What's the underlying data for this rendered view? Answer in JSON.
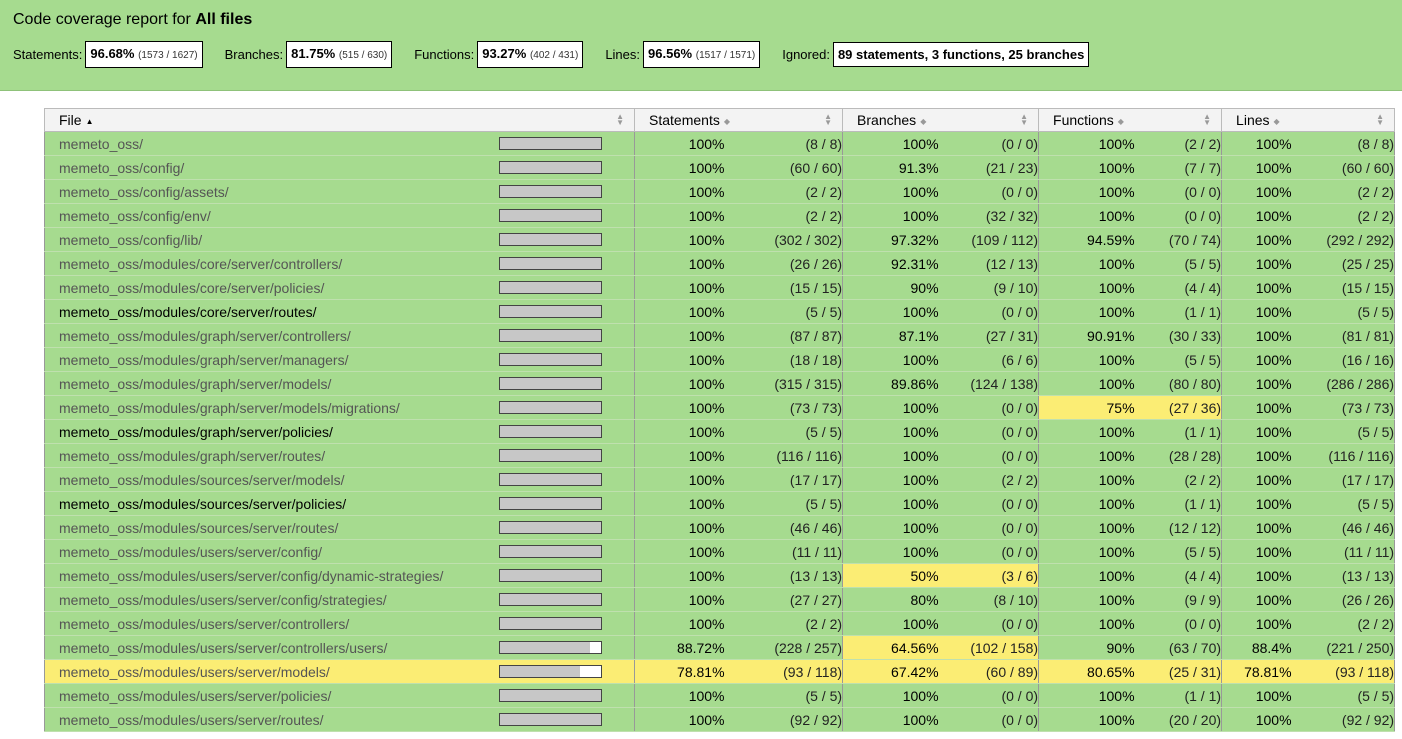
{
  "header": {
    "title_prefix": "Code coverage report for ",
    "title_bold": "All files",
    "summary": [
      {
        "label": "Statements:",
        "pct": "96.68%",
        "frac": "(1573 / 1627)"
      },
      {
        "label": "Branches:",
        "pct": "81.75%",
        "frac": "(515 / 630)"
      },
      {
        "label": "Functions:",
        "pct": "93.27%",
        "frac": "(402 / 431)"
      },
      {
        "label": "Lines:",
        "pct": "96.56%",
        "frac": "(1517 / 1571)"
      }
    ],
    "ignored_label": "Ignored:",
    "ignored_value": "89 statements, 3 functions, 25 branches"
  },
  "columns": {
    "file": "File",
    "statements": "Statements",
    "branches": "Branches",
    "functions": "Functions",
    "lines": "Lines"
  },
  "rows": [
    {
      "file": "memeto_oss/",
      "fill": 1.0,
      "s": "100%",
      "sf": "(8 / 8)",
      "b": "100%",
      "bf": "(0 / 0)",
      "f": "100%",
      "ff": "(2 / 2)",
      "l": "100%",
      "lf": "(8 / 8)"
    },
    {
      "file": "memeto_oss/config/",
      "fill": 1.0,
      "s": "100%",
      "sf": "(60 / 60)",
      "b": "91.3%",
      "bf": "(21 / 23)",
      "f": "100%",
      "ff": "(7 / 7)",
      "l": "100%",
      "lf": "(60 / 60)"
    },
    {
      "file": "memeto_oss/config/assets/",
      "fill": 1.0,
      "s": "100%",
      "sf": "(2 / 2)",
      "b": "100%",
      "bf": "(0 / 0)",
      "f": "100%",
      "ff": "(0 / 0)",
      "l": "100%",
      "lf": "(2 / 2)"
    },
    {
      "file": "memeto_oss/config/env/",
      "fill": 1.0,
      "s": "100%",
      "sf": "(2 / 2)",
      "b": "100%",
      "bf": "(32 / 32)",
      "f": "100%",
      "ff": "(0 / 0)",
      "l": "100%",
      "lf": "(2 / 2)"
    },
    {
      "file": "memeto_oss/config/lib/",
      "fill": 1.0,
      "s": "100%",
      "sf": "(302 / 302)",
      "b": "97.32%",
      "bf": "(109 / 112)",
      "f": "94.59%",
      "ff": "(70 / 74)",
      "l": "100%",
      "lf": "(292 / 292)"
    },
    {
      "file": "memeto_oss/modules/core/server/controllers/",
      "fill": 1.0,
      "s": "100%",
      "sf": "(26 / 26)",
      "b": "92.31%",
      "bf": "(12 / 13)",
      "f": "100%",
      "ff": "(5 / 5)",
      "l": "100%",
      "lf": "(25 / 25)"
    },
    {
      "file": "memeto_oss/modules/core/server/policies/",
      "fill": 1.0,
      "s": "100%",
      "sf": "(15 / 15)",
      "b": "90%",
      "bf": "(9 / 10)",
      "f": "100%",
      "ff": "(4 / 4)",
      "l": "100%",
      "lf": "(15 / 15)"
    },
    {
      "file": "memeto_oss/modules/core/server/routes/",
      "fill": 1.0,
      "dark": true,
      "s": "100%",
      "sf": "(5 / 5)",
      "b": "100%",
      "bf": "(0 / 0)",
      "f": "100%",
      "ff": "(1 / 1)",
      "l": "100%",
      "lf": "(5 / 5)"
    },
    {
      "file": "memeto_oss/modules/graph/server/controllers/",
      "fill": 1.0,
      "s": "100%",
      "sf": "(87 / 87)",
      "b": "87.1%",
      "bf": "(27 / 31)",
      "f": "90.91%",
      "ff": "(30 / 33)",
      "l": "100%",
      "lf": "(81 / 81)"
    },
    {
      "file": "memeto_oss/modules/graph/server/managers/",
      "fill": 1.0,
      "s": "100%",
      "sf": "(18 / 18)",
      "b": "100%",
      "bf": "(6 / 6)",
      "f": "100%",
      "ff": "(5 / 5)",
      "l": "100%",
      "lf": "(16 / 16)"
    },
    {
      "file": "memeto_oss/modules/graph/server/models/",
      "fill": 1.0,
      "s": "100%",
      "sf": "(315 / 315)",
      "b": "89.86%",
      "bf": "(124 / 138)",
      "f": "100%",
      "ff": "(80 / 80)",
      "l": "100%",
      "lf": "(286 / 286)"
    },
    {
      "file": "memeto_oss/modules/graph/server/models/migrations/",
      "fill": 1.0,
      "s": "100%",
      "sf": "(73 / 73)",
      "b": "100%",
      "bf": "(0 / 0)",
      "f": "75%",
      "ff": "(27 / 36)",
      "fyel": true,
      "l": "100%",
      "lf": "(73 / 73)"
    },
    {
      "file": "memeto_oss/modules/graph/server/policies/",
      "fill": 1.0,
      "dark": true,
      "s": "100%",
      "sf": "(5 / 5)",
      "b": "100%",
      "bf": "(0 / 0)",
      "f": "100%",
      "ff": "(1 / 1)",
      "l": "100%",
      "lf": "(5 / 5)"
    },
    {
      "file": "memeto_oss/modules/graph/server/routes/",
      "fill": 1.0,
      "s": "100%",
      "sf": "(116 / 116)",
      "b": "100%",
      "bf": "(0 / 0)",
      "f": "100%",
      "ff": "(28 / 28)",
      "l": "100%",
      "lf": "(116 / 116)"
    },
    {
      "file": "memeto_oss/modules/sources/server/models/",
      "fill": 1.0,
      "s": "100%",
      "sf": "(17 / 17)",
      "b": "100%",
      "bf": "(2 / 2)",
      "f": "100%",
      "ff": "(2 / 2)",
      "l": "100%",
      "lf": "(17 / 17)"
    },
    {
      "file": "memeto_oss/modules/sources/server/policies/",
      "fill": 1.0,
      "dark": true,
      "s": "100%",
      "sf": "(5 / 5)",
      "b": "100%",
      "bf": "(0 / 0)",
      "f": "100%",
      "ff": "(1 / 1)",
      "l": "100%",
      "lf": "(5 / 5)"
    },
    {
      "file": "memeto_oss/modules/sources/server/routes/",
      "fill": 1.0,
      "s": "100%",
      "sf": "(46 / 46)",
      "b": "100%",
      "bf": "(0 / 0)",
      "f": "100%",
      "ff": "(12 / 12)",
      "l": "100%",
      "lf": "(46 / 46)"
    },
    {
      "file": "memeto_oss/modules/users/server/config/",
      "fill": 1.0,
      "s": "100%",
      "sf": "(11 / 11)",
      "b": "100%",
      "bf": "(0 / 0)",
      "f": "100%",
      "ff": "(5 / 5)",
      "l": "100%",
      "lf": "(11 / 11)"
    },
    {
      "file": "memeto_oss/modules/users/server/config/dynamic-strategies/",
      "fill": 1.0,
      "s": "100%",
      "sf": "(13 / 13)",
      "b": "50%",
      "bf": "(3 / 6)",
      "byel": true,
      "f": "100%",
      "ff": "(4 / 4)",
      "l": "100%",
      "lf": "(13 / 13)"
    },
    {
      "file": "memeto_oss/modules/users/server/config/strategies/",
      "fill": 1.0,
      "s": "100%",
      "sf": "(27 / 27)",
      "b": "80%",
      "bf": "(8 / 10)",
      "f": "100%",
      "ff": "(9 / 9)",
      "l": "100%",
      "lf": "(26 / 26)"
    },
    {
      "file": "memeto_oss/modules/users/server/controllers/",
      "fill": 1.0,
      "s": "100%",
      "sf": "(2 / 2)",
      "b": "100%",
      "bf": "(0 / 0)",
      "f": "100%",
      "ff": "(0 / 0)",
      "l": "100%",
      "lf": "(2 / 2)"
    },
    {
      "file": "memeto_oss/modules/users/server/controllers/users/",
      "fill": 0.8872,
      "s": "88.72%",
      "sf": "(228 / 257)",
      "b": "64.56%",
      "bf": "(102 / 158)",
      "byel": true,
      "f": "90%",
      "ff": "(63 / 70)",
      "l": "88.4%",
      "lf": "(221 / 250)"
    },
    {
      "file": "memeto_oss/modules/users/server/models/",
      "fill": 0.7881,
      "rowyel": true,
      "s": "78.81%",
      "sf": "(93 / 118)",
      "b": "67.42%",
      "bf": "(60 / 89)",
      "f": "80.65%",
      "ff": "(25 / 31)",
      "l": "78.81%",
      "lf": "(93 / 118)"
    },
    {
      "file": "memeto_oss/modules/users/server/policies/",
      "fill": 1.0,
      "s": "100%",
      "sf": "(5 / 5)",
      "b": "100%",
      "bf": "(0 / 0)",
      "f": "100%",
      "ff": "(1 / 1)",
      "l": "100%",
      "lf": "(5 / 5)"
    },
    {
      "file": "memeto_oss/modules/users/server/routes/",
      "fill": 1.0,
      "s": "100%",
      "sf": "(92 / 92)",
      "b": "100%",
      "bf": "(0 / 0)",
      "f": "100%",
      "ff": "(20 / 20)",
      "l": "100%",
      "lf": "(92 / 92)"
    }
  ]
}
